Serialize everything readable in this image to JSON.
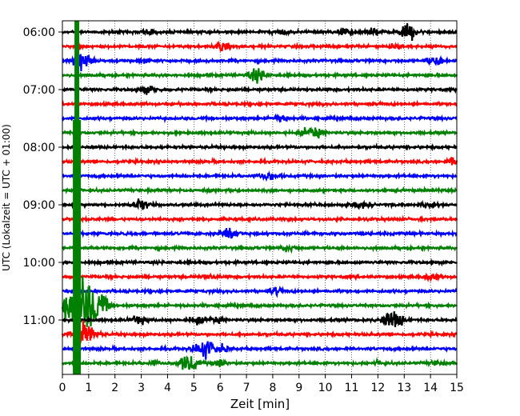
{
  "chart_data": {
    "type": "line",
    "title": "",
    "xlabel": "Zeit  [min]",
    "ylabel": "UTC (Lokalzeit = UTC + 01:00)",
    "xlim": [
      0,
      15
    ],
    "x_ticks": [
      "0",
      "1",
      "2",
      "3",
      "4",
      "5",
      "6",
      "7",
      "8",
      "9",
      "10",
      "11",
      "12",
      "13",
      "14",
      "15"
    ],
    "y_ticks": [
      {
        "label": "06:00",
        "trace": 0
      },
      {
        "label": "07:00",
        "trace": 4
      },
      {
        "label": "08:00",
        "trace": 8
      },
      {
        "label": "09:00",
        "trace": 12
      },
      {
        "label": "10:00",
        "trace": 16
      },
      {
        "label": "11:00",
        "trace": 20
      }
    ],
    "grid": "vertical dotted",
    "trace_interval_min": 15,
    "colors": [
      "#000000",
      "#ff0000",
      "#0000ff",
      "#008000"
    ],
    "traces": [
      {
        "start": "06:00",
        "color": "#000000",
        "events": [
          [
            3.3,
            0.8
          ],
          [
            8.3,
            0.8
          ],
          [
            10.7,
            1.0
          ],
          [
            11.8,
            0.9
          ],
          [
            13.2,
            2.2
          ]
        ]
      },
      {
        "start": "06:15",
        "color": "#ff0000",
        "events": [
          [
            6.1,
            1.1
          ],
          [
            12.7,
            0.7
          ]
        ]
      },
      {
        "start": "06:30",
        "color": "#0000ff",
        "events": [
          [
            0.6,
            1.5
          ],
          [
            0.8,
            1.8
          ],
          [
            3.1,
            0.7
          ],
          [
            14.2,
            1.6
          ]
        ]
      },
      {
        "start": "06:45",
        "color": "#008000",
        "events": [
          [
            7.4,
            2.0
          ]
        ]
      },
      {
        "start": "07:00",
        "color": "#000000",
        "events": [
          [
            3.3,
            1.2
          ]
        ]
      },
      {
        "start": "07:15",
        "color": "#ff0000",
        "events": []
      },
      {
        "start": "07:30",
        "color": "#0000ff",
        "events": [
          [
            8.3,
            0.9
          ]
        ]
      },
      {
        "start": "07:45",
        "color": "#008000",
        "events": [
          [
            9.5,
            2.2
          ]
        ]
      },
      {
        "start": "08:00",
        "color": "#000000",
        "events": []
      },
      {
        "start": "08:15",
        "color": "#ff0000",
        "events": [
          [
            14.9,
            1.0
          ]
        ]
      },
      {
        "start": "08:30",
        "color": "#0000ff",
        "events": [
          [
            7.8,
            1.3
          ]
        ]
      },
      {
        "start": "08:45",
        "color": "#008000",
        "events": []
      },
      {
        "start": "09:00",
        "color": "#000000",
        "events": [
          [
            3.0,
            1.6
          ],
          [
            11.3,
            1.0
          ],
          [
            14.0,
            1.0
          ]
        ]
      },
      {
        "start": "09:15",
        "color": "#ff0000",
        "events": []
      },
      {
        "start": "09:30",
        "color": "#0000ff",
        "events": [
          [
            6.3,
            2.0
          ]
        ]
      },
      {
        "start": "09:45",
        "color": "#008000",
        "events": [
          [
            8.6,
            0.9
          ]
        ]
      },
      {
        "start": "10:00",
        "color": "#000000",
        "events": []
      },
      {
        "start": "10:15",
        "color": "#ff0000",
        "events": [
          [
            5.6,
            0.7
          ],
          [
            14.1,
            1.1
          ]
        ]
      },
      {
        "start": "10:30",
        "color": "#0000ff",
        "events": [
          [
            8.1,
            1.0
          ]
        ]
      },
      {
        "start": "10:45",
        "color": "#008000",
        "events": [
          [
            0.75,
            9.0
          ],
          [
            1.3,
            2.0
          ]
        ]
      },
      {
        "start": "11:00",
        "color": "#000000",
        "events": [
          [
            2.9,
            1.4
          ],
          [
            5.1,
            1.2
          ],
          [
            5.8,
            1.0
          ],
          [
            12.4,
            1.6
          ],
          [
            12.7,
            1.8
          ]
        ]
      },
      {
        "start": "11:15",
        "color": "#ff0000",
        "events": [
          [
            0.8,
            4.0
          ]
        ]
      },
      {
        "start": "11:30",
        "color": "#0000ff",
        "events": [
          [
            5.4,
            3.0
          ],
          [
            6.1,
            1.0
          ]
        ]
      },
      {
        "start": "11:45",
        "color": "#008000",
        "events": [
          [
            4.8,
            2.7
          ],
          [
            6.0,
            1.2
          ],
          [
            3.5,
            0.6
          ],
          [
            12.0,
            0.6
          ],
          [
            14.2,
            0.6
          ]
        ]
      }
    ],
    "major_event": {
      "x": 0.55,
      "color": "#008000"
    }
  }
}
